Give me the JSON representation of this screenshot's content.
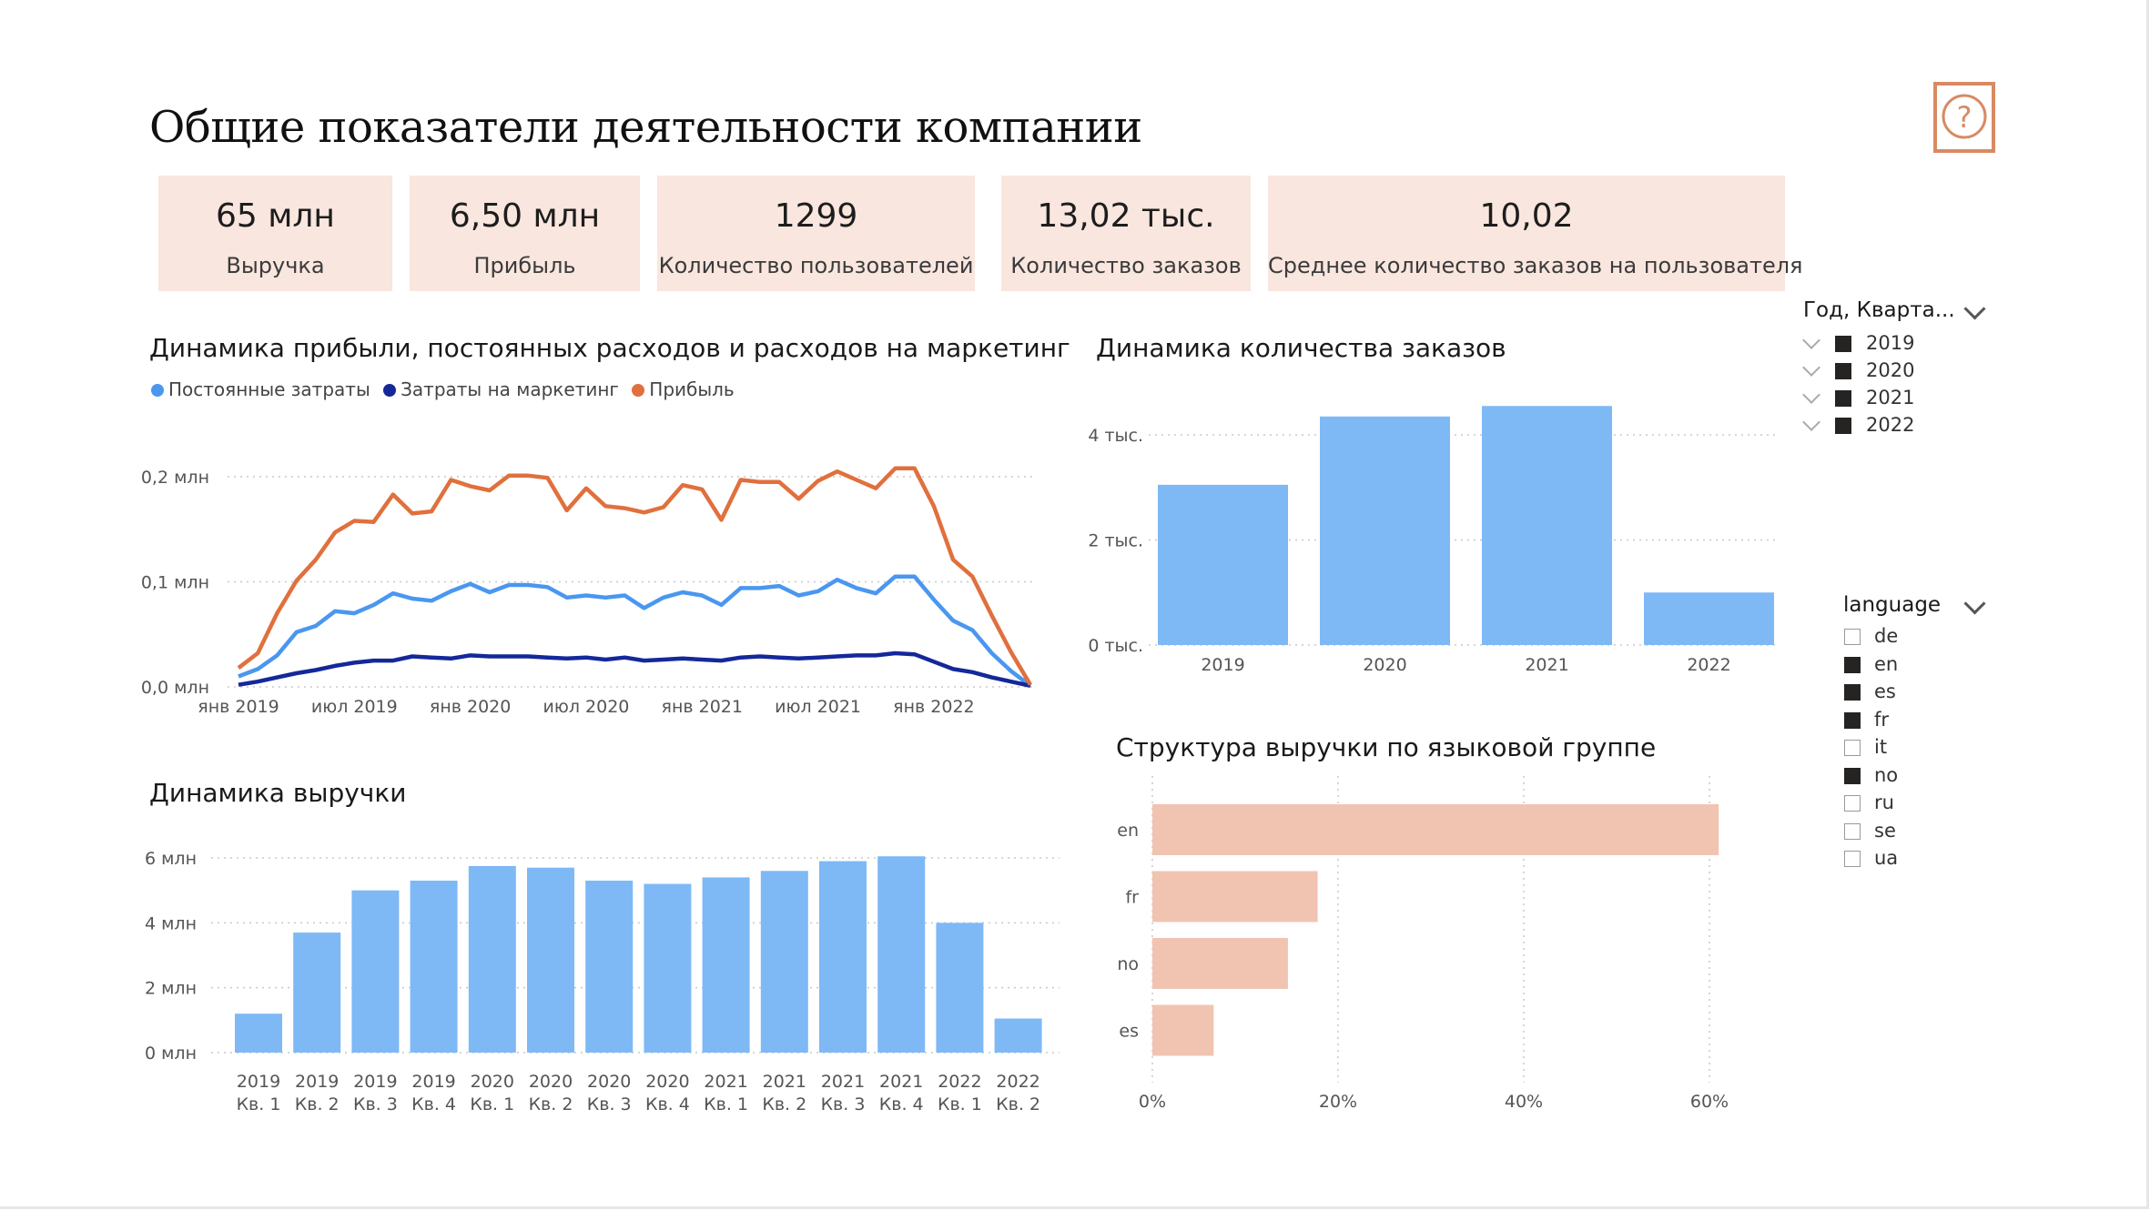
{
  "page": {
    "title": "Общие показатели деятельности компании",
    "help_icon": "question-circle-icon",
    "accent_color": "#d98a63",
    "kpi_bg": "#f9e6de"
  },
  "kpis": [
    {
      "value": "65 млн",
      "label": "Выручка"
    },
    {
      "value": "6,50 млн",
      "label": "Прибыль"
    },
    {
      "value": "1299",
      "label": "Количество пользователей"
    },
    {
      "value": "13,02 тыс.",
      "label": "Количество заказов"
    },
    {
      "value": "10,02",
      "label": "Среднее количество заказов на пользователя"
    }
  ],
  "charts": {
    "profit": {
      "title": "Динамика прибыли, постоянных расходов и расходов на маркетинг"
    },
    "orders": {
      "title": "Динамика количества заказов"
    },
    "revenue": {
      "title": "Динамика выручки"
    },
    "lang": {
      "title": "Структура выручки по языковой группе"
    }
  },
  "slicers": {
    "year": {
      "title": "Год, Кварта...",
      "items": [
        {
          "label": "2019",
          "checked": true
        },
        {
          "label": "2020",
          "checked": true
        },
        {
          "label": "2021",
          "checked": true
        },
        {
          "label": "2022",
          "checked": true
        }
      ]
    },
    "language": {
      "title": "language",
      "items": [
        {
          "label": "de",
          "checked": false
        },
        {
          "label": "en",
          "checked": true
        },
        {
          "label": "es",
          "checked": true
        },
        {
          "label": "fr",
          "checked": true
        },
        {
          "label": "it",
          "checked": false
        },
        {
          "label": "no",
          "checked": true
        },
        {
          "label": "ru",
          "checked": false
        },
        {
          "label": "se",
          "checked": false
        },
        {
          "label": "ua",
          "checked": false
        }
      ]
    }
  },
  "chart_data": [
    {
      "id": "profit",
      "type": "line",
      "title": "Динамика прибыли, постоянных расходов и расходов на маркетинг",
      "x_ticks": [
        "янв 2019",
        "июл 2019",
        "янв 2020",
        "июл 2020",
        "янв 2021",
        "июл 2021",
        "янв 2022"
      ],
      "y_ticks": [
        "0,0 млн",
        "0,1 млн",
        "0,2 млн"
      ],
      "ylim": [
        0,
        0.2
      ],
      "grid": true,
      "legend_position": "top-left",
      "series": [
        {
          "name": "Постоянные затраты",
          "color": "#4a97f0",
          "values": [
            0.01,
            0.017,
            0.03,
            0.052,
            0.058,
            0.072,
            0.07,
            0.078,
            0.089,
            0.084,
            0.082,
            0.091,
            0.098,
            0.09,
            0.097,
            0.097,
            0.095,
            0.085,
            0.087,
            0.085,
            0.087,
            0.075,
            0.085,
            0.09,
            0.087,
            0.078,
            0.094,
            0.094,
            0.096,
            0.087,
            0.091,
            0.102,
            0.094,
            0.089,
            0.105,
            0.105,
            0.083,
            0.063,
            0.054,
            0.032,
            0.015,
            0.001
          ]
        },
        {
          "name": "Затраты на маркетинг",
          "color": "#14289a",
          "values": [
            0.002,
            0.005,
            0.009,
            0.013,
            0.016,
            0.02,
            0.023,
            0.025,
            0.025,
            0.029,
            0.028,
            0.027,
            0.03,
            0.029,
            0.029,
            0.029,
            0.028,
            0.027,
            0.028,
            0.026,
            0.028,
            0.025,
            0.026,
            0.027,
            0.026,
            0.025,
            0.028,
            0.029,
            0.028,
            0.027,
            0.028,
            0.029,
            0.03,
            0.03,
            0.032,
            0.031,
            0.024,
            0.017,
            0.014,
            0.009,
            0.005,
            0.001
          ]
        },
        {
          "name": "Прибыль",
          "color": "#e0703d",
          "values": [
            0.018,
            0.032,
            0.07,
            0.101,
            0.121,
            0.147,
            0.158,
            0.157,
            0.183,
            0.165,
            0.167,
            0.197,
            0.191,
            0.187,
            0.201,
            0.201,
            0.199,
            0.168,
            0.189,
            0.172,
            0.17,
            0.166,
            0.171,
            0.192,
            0.188,
            0.159,
            0.197,
            0.195,
            0.195,
            0.179,
            0.196,
            0.205,
            0.197,
            0.189,
            0.208,
            0.208,
            0.172,
            0.121,
            0.105,
            0.068,
            0.033,
            0.002
          ]
        }
      ]
    },
    {
      "id": "orders",
      "type": "bar",
      "title": "Динамика количества заказов",
      "categories": [
        "2019",
        "2020",
        "2021",
        "2022"
      ],
      "values": [
        3050,
        4350,
        4550,
        1000
      ],
      "y_ticks": [
        "0 тыс.",
        "2 тыс.",
        "4 тыс."
      ],
      "ylim": [
        0,
        4000
      ],
      "color": "#7eb9f6"
    },
    {
      "id": "revenue",
      "type": "bar",
      "title": "Динамика выручки",
      "categories": [
        {
          "year": "2019",
          "q": "Кв. 1"
        },
        {
          "year": "2019",
          "q": "Кв. 2"
        },
        {
          "year": "2019",
          "q": "Кв. 3"
        },
        {
          "year": "2019",
          "q": "Кв. 4"
        },
        {
          "year": "2020",
          "q": "Кв. 1"
        },
        {
          "year": "2020",
          "q": "Кв. 2"
        },
        {
          "year": "2020",
          "q": "Кв. 3"
        },
        {
          "year": "2020",
          "q": "Кв. 4"
        },
        {
          "year": "2021",
          "q": "Кв. 1"
        },
        {
          "year": "2021",
          "q": "Кв. 2"
        },
        {
          "year": "2021",
          "q": "Кв. 3"
        },
        {
          "year": "2021",
          "q": "Кв. 4"
        },
        {
          "year": "2022",
          "q": "Кв. 1"
        },
        {
          "year": "2022",
          "q": "Кв. 2"
        }
      ],
      "values": [
        1.2,
        3.7,
        5.0,
        5.3,
        5.75,
        5.7,
        5.3,
        5.2,
        5.4,
        5.6,
        5.9,
        6.05,
        4.0,
        1.05
      ],
      "y_ticks": [
        "0 млн",
        "2 млн",
        "4 млн",
        "6 млн"
      ],
      "ylim": [
        0,
        6
      ],
      "color": "#7eb9f6"
    },
    {
      "id": "lang",
      "type": "bar",
      "orientation": "horizontal",
      "title": "Структура выручки по языковой группе",
      "categories": [
        "en",
        "fr",
        "no",
        "es"
      ],
      "values": [
        61,
        17.8,
        14.6,
        6.6
      ],
      "x_ticks": [
        "0%",
        "20%",
        "40%",
        "60%"
      ],
      "xlim": [
        0,
        60
      ],
      "color": "#f1c4b1"
    }
  ]
}
